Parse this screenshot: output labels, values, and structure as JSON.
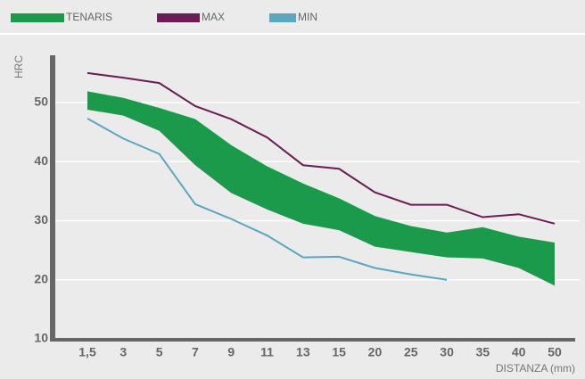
{
  "chart_data": {
    "type": "band-line",
    "x_label": "DISTANZA (mm)",
    "y_label": "HRC",
    "categories": [
      "1,5",
      "3",
      "5",
      "7",
      "9",
      "11",
      "13",
      "15",
      "20",
      "25",
      "30",
      "35",
      "40",
      "50"
    ],
    "series": [
      {
        "name": "TENARIS",
        "color": "#1b9a4b",
        "type": "band",
        "high": [
          51.9,
          50.8,
          49.1,
          47.2,
          42.8,
          39.2,
          36.3,
          33.8,
          30.8,
          29.1,
          28,
          28.9,
          27.3,
          26.3
        ],
        "low": [
          48.8,
          47.8,
          45.2,
          39.4,
          34.7,
          31.9,
          29.5,
          28.4,
          25.6,
          24.7,
          23.8,
          23.6,
          22,
          19
        ]
      },
      {
        "name": "MAX",
        "color": "#6b1d55",
        "type": "line",
        "values": [
          55,
          54.2,
          53.3,
          49.4,
          47.2,
          44.1,
          39.4,
          38.8,
          34.8,
          32.7,
          32.7,
          30.6,
          31.1,
          29.5
        ]
      },
      {
        "name": "MIN",
        "color": "#5ba7bf",
        "type": "line",
        "values": [
          47.3,
          43.9,
          41.3,
          32.8,
          30.3,
          27.5,
          23.8,
          23.9,
          22,
          20.9,
          20,
          null,
          null,
          null
        ]
      }
    ],
    "ylim": [
      10,
      58
    ],
    "yticks": [
      10,
      20,
      30,
      40,
      50
    ],
    "grid": true
  }
}
